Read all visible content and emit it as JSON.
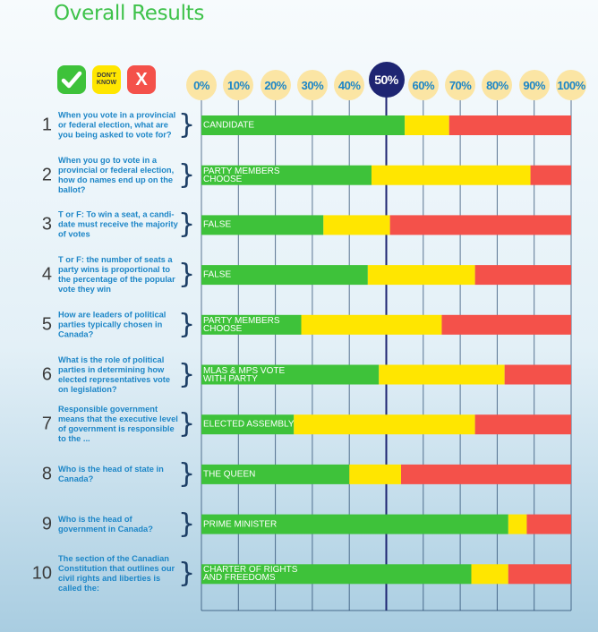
{
  "title": "Overall Results",
  "legend": {
    "correct_icon": "check-icon",
    "dont_know_line1": "DON'T",
    "dont_know_line2": "KNOW",
    "wrong_icon": "x-icon",
    "wrong_label": "X"
  },
  "colors": {
    "correct": "#3ec23a",
    "dont_know": "#ffe600",
    "wrong": "#f4514a",
    "title": "#3ec24a",
    "question_text": "#1d86c7",
    "grid": "#1d3f66",
    "fifty_line": "#1e2572"
  },
  "chart_data": {
    "type": "bar",
    "orientation": "horizontal",
    "stacked": true,
    "xlim": [
      0,
      100
    ],
    "x_ticks": [
      "0%",
      "10%",
      "20%",
      "30%",
      "40%",
      "50%",
      "60%",
      "70%",
      "80%",
      "90%",
      "100%"
    ],
    "highlight_tick": "50%",
    "series": [
      {
        "key": "correct",
        "values": [
          55,
          46,
          33,
          45,
          27,
          48,
          25,
          40,
          83,
          73
        ]
      },
      {
        "key": "dont_know",
        "values": [
          12,
          43,
          18,
          29,
          38,
          34,
          49,
          14,
          5,
          10
        ]
      },
      {
        "key": "wrong",
        "values": [
          33,
          11,
          49,
          26,
          35,
          18,
          26,
          46,
          12,
          17
        ]
      }
    ],
    "questions": [
      {
        "number": "1",
        "text": "When you vote in a provincial or federal election, what are you being asked to vote for?",
        "answer": "CANDIDATE"
      },
      {
        "number": "2",
        "text": "When you go to vote in a provincial or federal election, how do names end up on the ballot?",
        "answer": "PARTY MEMBERS CHOOSE"
      },
      {
        "number": "3",
        "text": "T or F: To win a seat, a candi-date must receive the majority of votes",
        "answer": "FALSE"
      },
      {
        "number": "4",
        "text": "T or F: the number of seats a party wins is proportional to the percentage of the popular vote they win",
        "answer": "FALSE"
      },
      {
        "number": "5",
        "text": "How are leaders of political parties typically chosen in Canada?",
        "answer": "PARTY MEMBERS CHOOSE"
      },
      {
        "number": "6",
        "text": "What is the role of political parties in determining how elected representatives vote on legislation?",
        "answer": "MLAS & MPS VOTE WITH PARTY"
      },
      {
        "number": "7",
        "text": "Responsible government means that the executive level of government is responsible to the ...",
        "answer": "ELECTED ASSEMBLY"
      },
      {
        "number": "8",
        "text": "Who is the head of state in Canada?",
        "answer": "THE QUEEN"
      },
      {
        "number": "9",
        "text": "Who is the head of government in Canada?",
        "answer": "PRIME MINISTER"
      },
      {
        "number": "10",
        "text": "The section of the Canadian Constitution that outlines our civil rights and liberties is called the:",
        "answer": "CHARTER OF RIGHTS AND FREEDOMS"
      }
    ]
  }
}
